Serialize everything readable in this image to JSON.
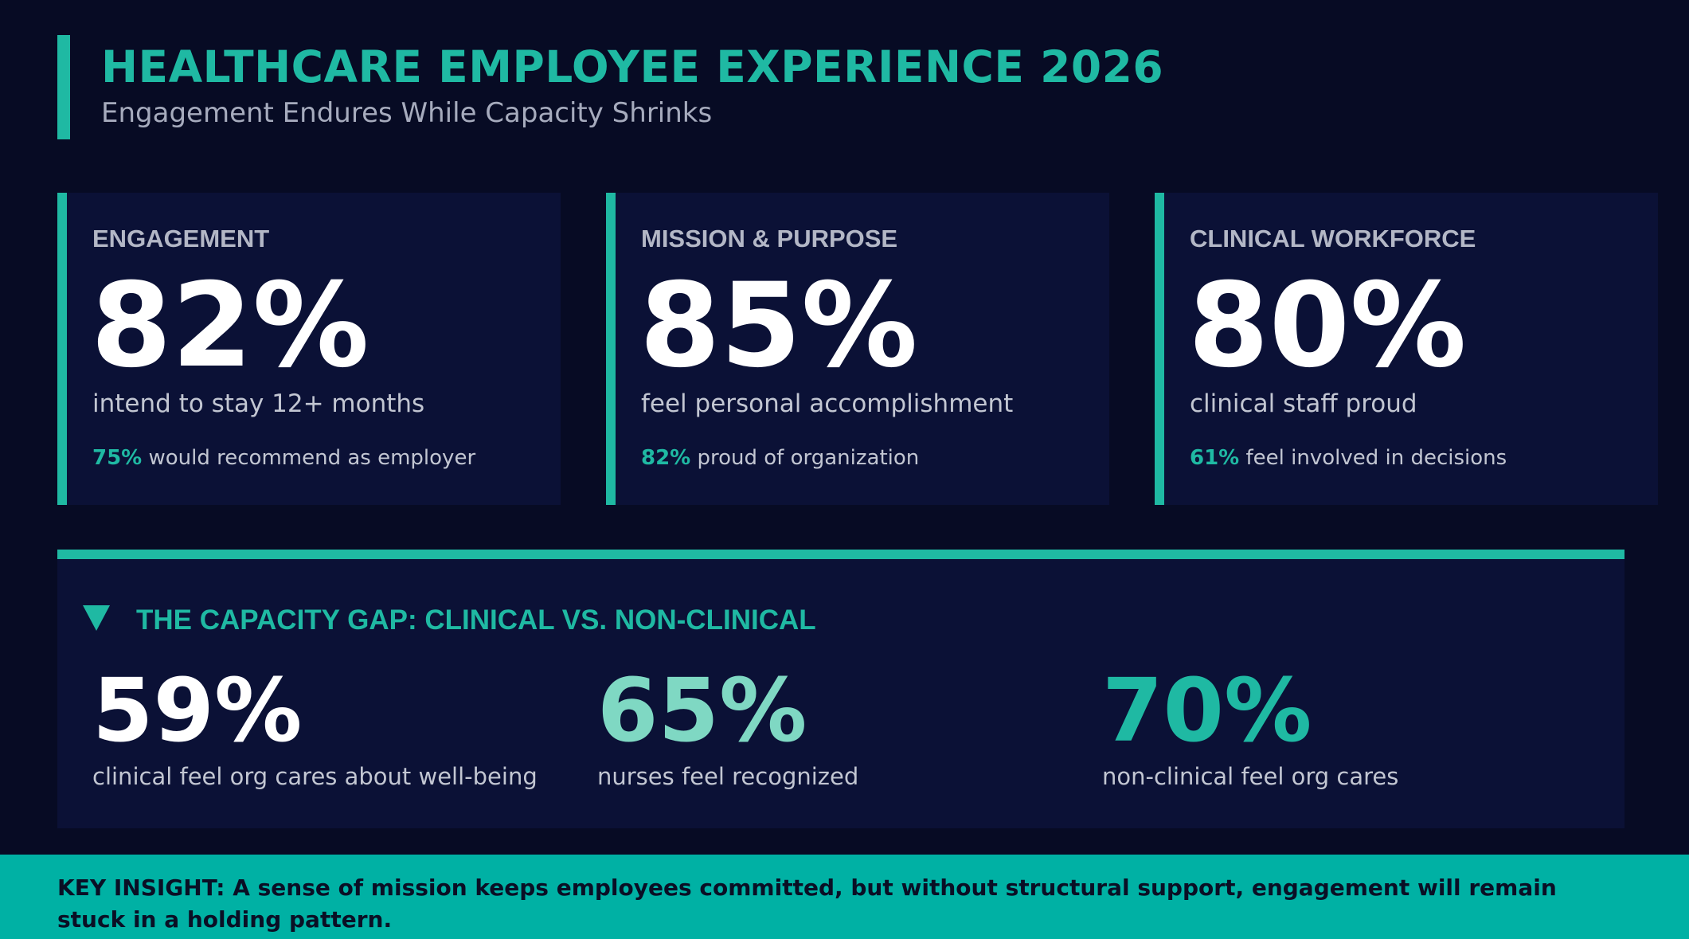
{
  "header": {
    "title": "HEALTHCARE EMPLOYEE EXPERIENCE 2026",
    "subtitle": "Engagement Endures While Capacity Shrinks"
  },
  "cards": [
    {
      "label": "ENGAGEMENT",
      "value": "82%",
      "description": "intend to stay 12+ months",
      "sub_value": "75%",
      "sub_text": " would recommend as employer"
    },
    {
      "label": "MISSION & PURPOSE",
      "value": "85%",
      "description": "feel personal accomplishment",
      "sub_value": "82%",
      "sub_text": " proud of organization"
    },
    {
      "label": "CLINICAL WORKFORCE",
      "value": "80%",
      "description": "clinical staff proud",
      "sub_value": "61%",
      "sub_text": " feel involved in decisions"
    }
  ],
  "gap": {
    "icon": "triangle-down-icon",
    "title": "THE CAPACITY GAP: CLINICAL VS. NON-CLINICAL",
    "stats": [
      {
        "value": "59%",
        "description": "clinical feel org cares about well-being",
        "color": "#ffffff"
      },
      {
        "value": "65%",
        "description": "nurses feel recognized",
        "color": "#7fd8c3"
      },
      {
        "value": "70%",
        "description": "non-clinical feel org cares",
        "color": "#1fb9a3"
      }
    ]
  },
  "insight": {
    "text": "KEY INSIGHT:  A sense of mission keeps employees committed, but without structural support, engagement will remain stuck in a holding pattern."
  },
  "colors": {
    "background": "#070b24",
    "panel": "#0b1136",
    "accent": "#1fb9a3",
    "insight_bar": "#00b1a4"
  }
}
